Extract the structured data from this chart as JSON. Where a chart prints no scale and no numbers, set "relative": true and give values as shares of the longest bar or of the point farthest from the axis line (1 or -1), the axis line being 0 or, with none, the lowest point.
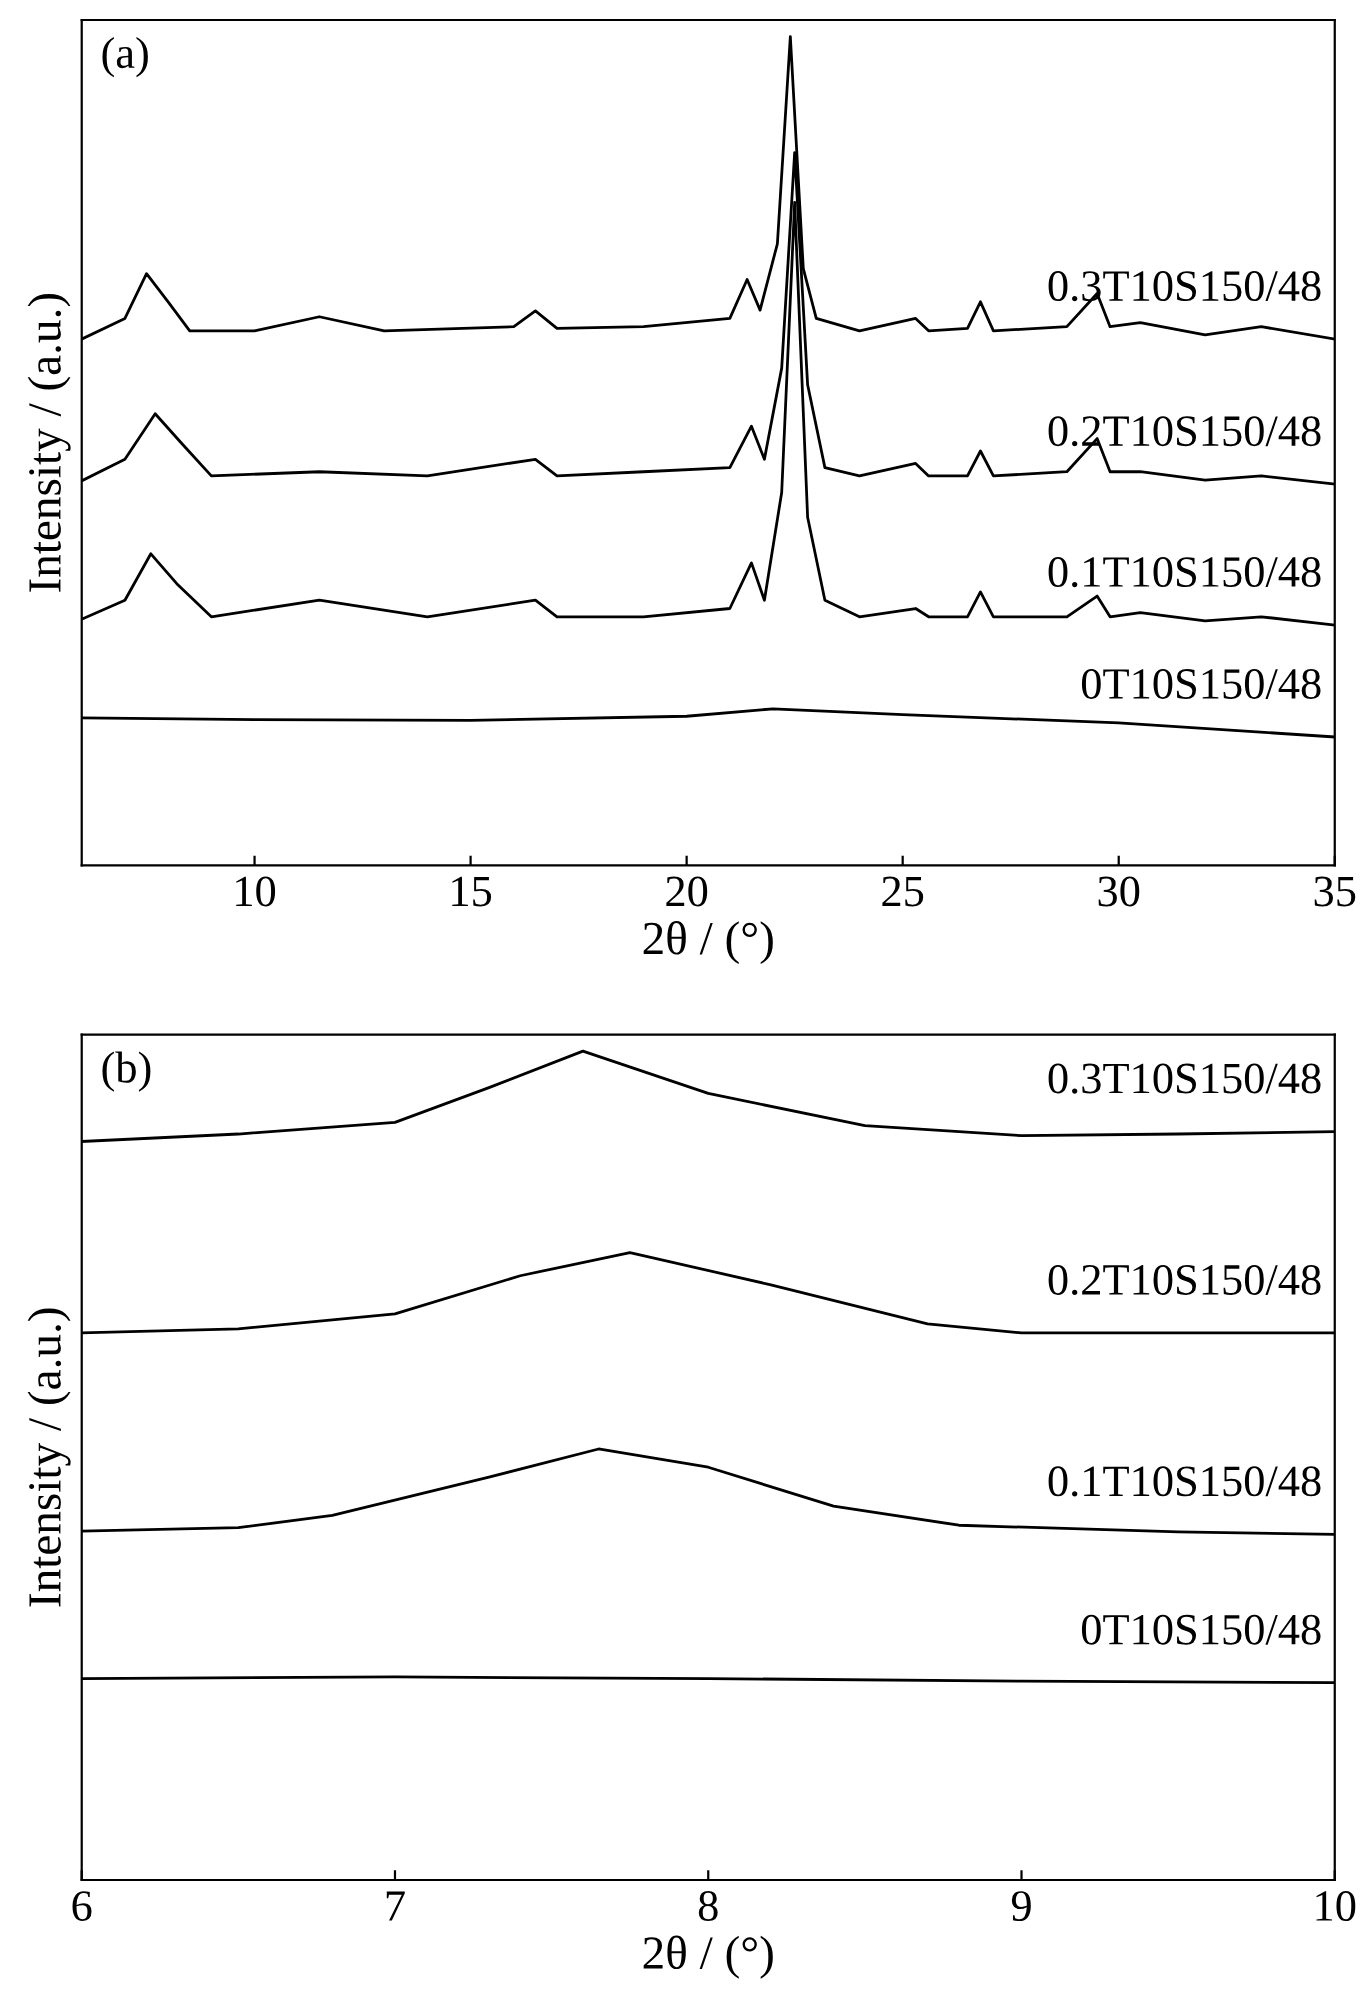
{
  "chart_data": [
    {
      "type": "line",
      "title": "(a)",
      "xlabel": "2θ / (°)",
      "ylabel": "Intensity / (a.u.)",
      "relative": true,
      "xlim": [
        6,
        35
      ],
      "xticks": [
        10,
        15,
        20,
        25,
        30,
        35
      ],
      "tick_labels": "x",
      "legend": false,
      "grid": false,
      "marker": "none",
      "line_style": "solid",
      "series": [
        {
          "name": "0.3T10S150/48",
          "color": "#000000",
          "x": [
            6,
            7,
            7.5,
            8,
            8.5,
            10,
            11.5,
            13,
            16,
            16.5,
            17,
            19,
            21,
            21.4,
            21.7,
            22.1,
            22.4,
            22.7,
            23,
            24,
            25.3,
            25.6,
            26.5,
            26.8,
            27.1,
            28.8,
            29.5,
            29.8,
            30.5,
            32,
            33.3,
            35
          ],
          "values": [
            0.635,
            0.66,
            0.714,
            0.68,
            0.645,
            0.645,
            0.662,
            0.645,
            0.65,
            0.669,
            0.648,
            0.65,
            0.66,
            0.707,
            0.67,
            0.75,
            1.0,
            0.72,
            0.66,
            0.645,
            0.66,
            0.645,
            0.648,
            0.68,
            0.645,
            0.65,
            0.69,
            0.65,
            0.655,
            0.64,
            0.65,
            0.635
          ]
        },
        {
          "name": "0.2T10S150/48",
          "color": "#000000",
          "x": [
            6,
            7,
            7.7,
            8.3,
            9,
            11.5,
            14,
            16.5,
            17,
            19,
            21,
            21.5,
            21.8,
            22.2,
            22.5,
            22.8,
            23.2,
            24,
            25.3,
            25.6,
            26.5,
            26.8,
            27.1,
            28.8,
            29.5,
            29.8,
            30.5,
            32,
            33.3,
            35
          ],
          "values": [
            0.464,
            0.49,
            0.545,
            0.51,
            0.47,
            0.475,
            0.47,
            0.49,
            0.47,
            0.475,
            0.48,
            0.53,
            0.49,
            0.6,
            0.86,
            0.58,
            0.48,
            0.47,
            0.485,
            0.47,
            0.47,
            0.5,
            0.47,
            0.475,
            0.515,
            0.475,
            0.475,
            0.465,
            0.47,
            0.46
          ]
        },
        {
          "name": "0.1T10S150/48",
          "color": "#000000",
          "x": [
            6,
            7,
            7.6,
            8.2,
            9,
            11.5,
            14,
            16.5,
            17,
            19,
            21,
            21.5,
            21.8,
            22.2,
            22.5,
            22.8,
            23.2,
            24,
            25.3,
            25.6,
            26.5,
            26.8,
            27.1,
            28.8,
            29.5,
            29.8,
            30.5,
            32,
            33.3,
            35
          ],
          "values": [
            0.297,
            0.32,
            0.376,
            0.34,
            0.3,
            0.32,
            0.3,
            0.32,
            0.3,
            0.3,
            0.31,
            0.365,
            0.32,
            0.45,
            0.8,
            0.42,
            0.32,
            0.3,
            0.31,
            0.3,
            0.3,
            0.33,
            0.3,
            0.3,
            0.325,
            0.3,
            0.305,
            0.295,
            0.3,
            0.29
          ]
        },
        {
          "name": "0T10S150/48",
          "color": "#000000",
          "x": [
            6,
            10,
            15,
            20,
            22,
            25,
            30,
            35
          ],
          "values": [
            0.178,
            0.176,
            0.175,
            0.18,
            0.189,
            0.182,
            0.172,
            0.155
          ]
        }
      ]
    },
    {
      "type": "line",
      "title": "(b)",
      "xlabel": "2θ / (°)",
      "ylabel": "Intensity / (a.u.)",
      "relative": true,
      "xlim": [
        6,
        10
      ],
      "xticks": [
        6,
        7,
        8,
        9,
        10
      ],
      "tick_labels": "x",
      "legend": false,
      "grid": false,
      "marker": "none",
      "line_style": "solid",
      "series": [
        {
          "name": "0.3T10S150/48",
          "color": "#000000",
          "x": [
            6,
            6.5,
            7,
            7.3,
            7.6,
            8,
            8.5,
            9,
            9.5,
            10
          ],
          "values": [
            0.891,
            0.9,
            0.914,
            0.956,
            1.0,
            0.949,
            0.91,
            0.898,
            0.9,
            0.903
          ]
        },
        {
          "name": "0.2T10S150/48",
          "color": "#000000",
          "x": [
            6,
            6.5,
            7,
            7.4,
            7.75,
            8.2,
            8.7,
            9,
            9.5,
            10
          ],
          "values": [
            0.66,
            0.665,
            0.683,
            0.729,
            0.757,
            0.718,
            0.671,
            0.66,
            0.66,
            0.66
          ]
        },
        {
          "name": "0.1T10S150/48",
          "color": "#000000",
          "x": [
            6,
            6.5,
            6.8,
            7.3,
            7.65,
            8,
            8.4,
            8.8,
            9.5,
            10
          ],
          "values": [
            0.421,
            0.425,
            0.44,
            0.486,
            0.52,
            0.498,
            0.451,
            0.428,
            0.42,
            0.417
          ]
        },
        {
          "name": "0T10S150/48",
          "color": "#000000",
          "x": [
            6,
            7,
            8,
            9,
            10
          ],
          "values": [
            0.243,
            0.245,
            0.243,
            0.24,
            0.238
          ]
        }
      ]
    }
  ]
}
